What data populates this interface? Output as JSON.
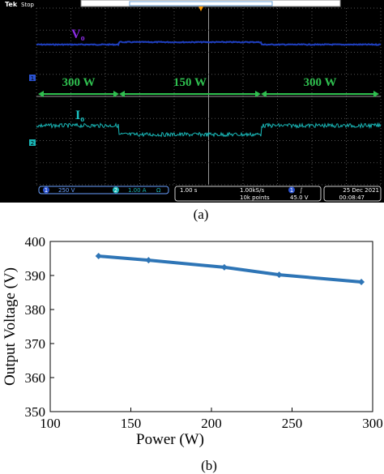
{
  "scope": {
    "brand": "Tek",
    "state": "Stop",
    "vlabel": {
      "main": "V",
      "sub": "o"
    },
    "ilabel": {
      "main": "I",
      "sub": "o"
    },
    "power_labels": [
      "300 W",
      "150 W",
      "300 W"
    ],
    "markers": [
      "1",
      "2"
    ],
    "status": {
      "ch1": "1",
      "ch1_scale": "250 V",
      "ch2": "2",
      "ch2_scale": "1.00 A",
      "ch2_coupling": "Ω",
      "timebase": "1.00 s",
      "rate": "1.00kS/s",
      "points": "10k points",
      "trig_ch": "1",
      "trig_slope": "∫",
      "trig_level": "45.0 V",
      "date": "25 Dec 2021",
      "time": "00:08:47"
    }
  },
  "captions": [
    "(a)",
    "(b)"
  ],
  "chart_data": {
    "type": "line",
    "xlabel": "Power (W)",
    "ylabel": "Output Voltage (V)",
    "x": [
      130,
      161,
      208,
      242,
      293
    ],
    "series": [
      {
        "color": "#2e75b6",
        "values": [
          395.7,
          394.5,
          392.4,
          390.2,
          388.1
        ]
      }
    ],
    "xlim": [
      100,
      300
    ],
    "ylim": [
      350,
      400
    ],
    "xticks": [
      100,
      150,
      200,
      250,
      300
    ],
    "yticks": [
      350,
      360,
      370,
      380,
      390,
      400
    ]
  }
}
